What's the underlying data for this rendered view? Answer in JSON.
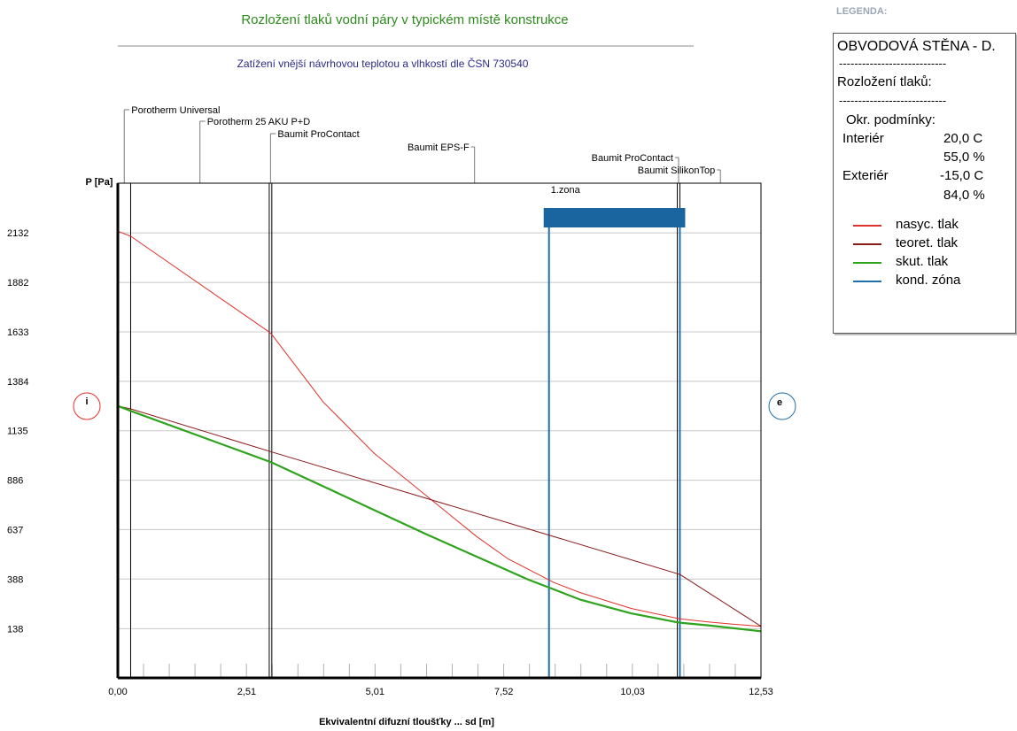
{
  "header": {
    "title": "Rozložení tlaků vodní páry v typickém místě konstrukce",
    "subtitle": "Zatížení vnější návrhovou teplotou a vlhkostí dle ČSN 730540",
    "legend_caption": "LEGENDA:"
  },
  "colors": {
    "nasyc": "#e0302a",
    "teoret": "#8b1a1a",
    "skut": "#2ea31c",
    "kond": "#1f6fae",
    "title": "#2e8b1e",
    "subtitle": "#2a2a8a"
  },
  "layers": [
    {
      "name": "Porotherm Universal",
      "start": 0.0,
      "end": 0.25
    },
    {
      "name": "Porotherm 25 AKU P+D",
      "start": 0.25,
      "end": 2.95
    },
    {
      "name": "Baumit ProContact",
      "start": 2.95,
      "end": 3.0
    },
    {
      "name": "Baumit EPS-F",
      "start": 3.0,
      "end": 10.9
    },
    {
      "name": "Baumit ProContact",
      "start": 10.9,
      "end": 10.95
    },
    {
      "name": "Baumit SilikonTop",
      "start": 10.95,
      "end": 12.53
    }
  ],
  "markers": {
    "interior": "i",
    "exterior": "e"
  },
  "zone_label": "1.zona",
  "chart_data": {
    "type": "line",
    "title": "Rozložení tlaků vodní páry v typickém místě konstrukce",
    "xlabel": "Ekvivalentní difuzní tloušťky ... sd [m]",
    "ylabel": "P [Pa]",
    "xlim": [
      0,
      12.53
    ],
    "ylim": [
      -110,
      2382
    ],
    "x_ticks": [
      "0,00",
      "2,51",
      "5,01",
      "7,52",
      "10,03",
      "12,53"
    ],
    "x_tick_values": [
      0,
      2.51,
      5.01,
      7.52,
      10.03,
      12.53
    ],
    "y_ticks": [
      "138",
      "388",
      "637",
      "886",
      "1135",
      "1384",
      "1633",
      "1882",
      "2132"
    ],
    "y_tick_values": [
      138,
      388,
      637,
      886,
      1135,
      1384,
      1633,
      1882,
      2132
    ],
    "grid": "horizontal",
    "series": [
      {
        "name": "nasyc. tlak",
        "color": "#e0302a",
        "x": [
          0,
          0.25,
          2.95,
          3.0,
          3.5,
          4.0,
          5.0,
          6.0,
          7.0,
          7.6,
          8.5,
          9.0,
          10.0,
          10.9,
          10.95,
          11.5,
          12.0,
          12.53
        ],
        "y": [
          2140,
          2115,
          1632,
          1620,
          1450,
          1280,
          1020,
          810,
          600,
          490,
          370,
          320,
          240,
          190,
          188,
          172,
          160,
          150
        ]
      },
      {
        "name": "teoret. tlak",
        "color": "#8b1a1a",
        "x": [
          0,
          0.25,
          2.95,
          3.0,
          10.9,
          10.95,
          12.53
        ],
        "y": [
          1260,
          1245,
          1032,
          1028,
          415,
          411,
          150
        ]
      },
      {
        "name": "skut. tlak",
        "color": "#2ea31c",
        "x": [
          0,
          0.25,
          2.95,
          3.0,
          4.0,
          5.0,
          6.0,
          7.0,
          8.0,
          8.4,
          9.0,
          10.0,
          10.9,
          10.95,
          11.5,
          12.0,
          12.53
        ],
        "y": [
          1260,
          1235,
          980,
          975,
          855,
          735,
          615,
          500,
          385,
          345,
          285,
          215,
          170,
          168,
          155,
          140,
          125
        ]
      },
      {
        "name": "kond. zóna",
        "color": "#1f6fae",
        "zone": [
          8.4,
          10.95
        ]
      }
    ]
  },
  "legend": {
    "head": "OBVODOVÁ STĚNA - D.",
    "dashes": "----------------------------",
    "section": "Rozložení tlaků:",
    "conditions_title": "Okr. podmínky:",
    "interior_label": "Interiér",
    "interior_temp": "20,0 C",
    "interior_rh": "55,0 %",
    "exterior_label": "Exteriér",
    "exterior_temp": "-15,0 C",
    "exterior_rh": "84,0 %",
    "items": [
      {
        "label": "nasyc. tlak",
        "color": "#e0302a"
      },
      {
        "label": "teoret. tlak",
        "color": "#8b1a1a"
      },
      {
        "label": "skut. tlak",
        "color": "#2ea31c"
      },
      {
        "label": "kond. zóna",
        "color": "#1f6fae"
      }
    ]
  }
}
